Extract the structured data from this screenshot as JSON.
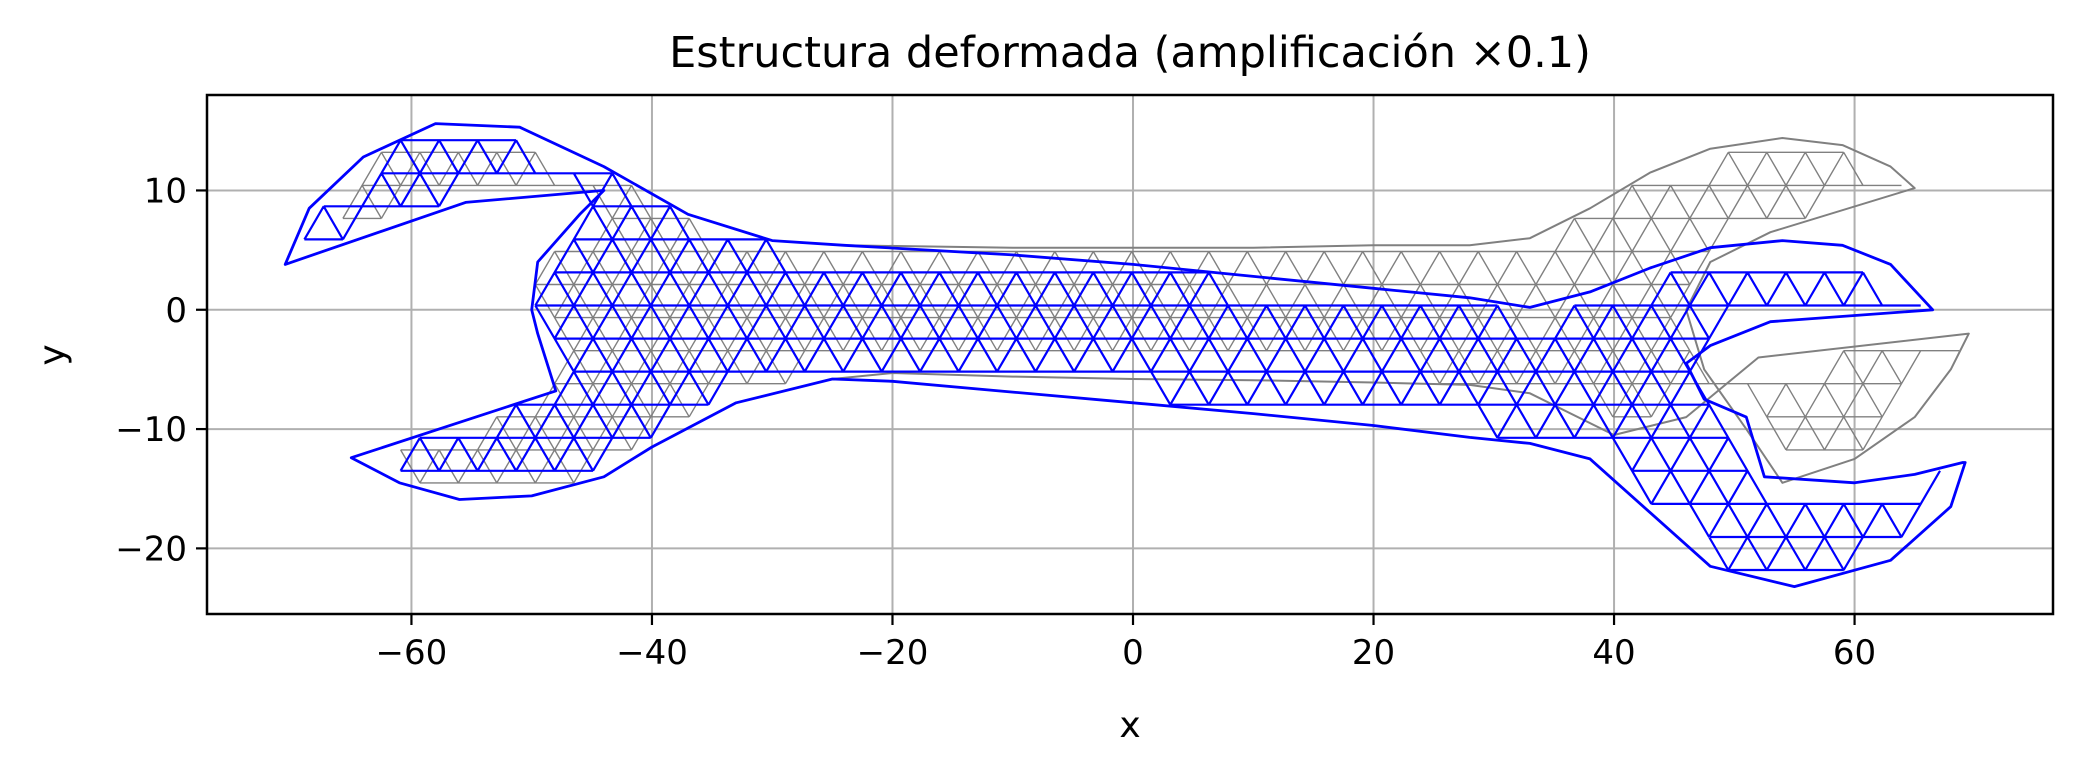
{
  "chart_data": {
    "type": "mesh",
    "title": "Estructura deformada (amplificación ×0.1)",
    "xlabel": "x",
    "ylabel": "y",
    "xlim": [
      -77,
      76.5
    ],
    "ylim": [
      -25.5,
      18
    ],
    "x_ticks": [
      -60,
      -40,
      -20,
      0,
      20,
      40,
      60
    ],
    "x_tick_labels": [
      "−60",
      "−40",
      "−20",
      "0",
      "20",
      "40",
      "60"
    ],
    "y_ticks": [
      -20,
      -10,
      0,
      10
    ],
    "y_tick_labels": [
      "−20",
      "−10",
      "0",
      "10"
    ],
    "grid": true,
    "series": [
      {
        "role": "undeformed",
        "color": "#808080",
        "outline": [
          [
            -70.5,
            3.8
          ],
          [
            -68.5,
            8.5
          ],
          [
            -64,
            12.8
          ],
          [
            -58,
            15.6
          ],
          [
            -51,
            15.3
          ],
          [
            -44,
            12.0
          ],
          [
            -37,
            8.0
          ],
          [
            -30,
            5.8
          ],
          [
            -24,
            5.4
          ],
          [
            -10,
            5.2
          ],
          [
            0,
            5.2
          ],
          [
            10,
            5.2
          ],
          [
            20,
            5.4
          ],
          [
            28,
            5.4
          ],
          [
            33,
            6.0
          ],
          [
            38,
            8.5
          ],
          [
            43,
            11.5
          ],
          [
            48,
            13.5
          ],
          [
            54,
            14.4
          ],
          [
            59,
            13.8
          ],
          [
            63,
            12.0
          ],
          [
            65,
            10.2
          ],
          [
            53,
            6.5
          ],
          [
            48,
            4.0
          ],
          [
            46,
            0
          ],
          [
            47.5,
            -5
          ],
          [
            51,
            -10
          ],
          [
            54,
            -14.5
          ],
          [
            60,
            -12.5
          ],
          [
            65,
            -9.0
          ],
          [
            68,
            -5.0
          ],
          [
            69.5,
            -2.0
          ],
          [
            52,
            -4.0
          ],
          [
            46,
            -9.0
          ],
          [
            40,
            -10.5
          ],
          [
            33,
            -7.0
          ],
          [
            28,
            -6.3
          ],
          [
            20,
            -6.1
          ],
          [
            10,
            -5.9
          ],
          [
            0,
            -5.8
          ],
          [
            -10,
            -5.6
          ],
          [
            -20,
            -5.3
          ],
          [
            -25,
            -5.8
          ],
          [
            -33,
            -7.8
          ],
          [
            -40,
            -11.5
          ],
          [
            -44,
            -14.0
          ],
          [
            -50,
            -15.6
          ],
          [
            -56,
            -15.9
          ],
          [
            -61,
            -14.5
          ],
          [
            -65,
            -12.4
          ],
          [
            -48,
            -6.8
          ],
          [
            -49.5,
            -2.0
          ],
          [
            -50,
            0
          ],
          [
            -49.5,
            4.0
          ],
          [
            -46,
            8.0
          ],
          [
            -44,
            10.0
          ],
          [
            -55.5,
            9.0
          ]
        ]
      },
      {
        "role": "deformed",
        "color": "#0000ff",
        "outline": [
          [
            -70.5,
            3.8
          ],
          [
            -68.5,
            8.5
          ],
          [
            -64,
            12.8
          ],
          [
            -58,
            15.6
          ],
          [
            -51,
            15.3
          ],
          [
            -44,
            12.0
          ],
          [
            -37,
            8.0
          ],
          [
            -30,
            5.8
          ],
          [
            -24,
            5.4
          ],
          [
            -10,
            4.6
          ],
          [
            0,
            3.8
          ],
          [
            10,
            2.8
          ],
          [
            20,
            1.8
          ],
          [
            28,
            1.0
          ],
          [
            33,
            0.2
          ],
          [
            38,
            1.5
          ],
          [
            43,
            3.5
          ],
          [
            48,
            5.2
          ],
          [
            54,
            5.8
          ],
          [
            59,
            5.4
          ],
          [
            63,
            3.8
          ],
          [
            66.5,
            0
          ],
          [
            53,
            -1.0
          ],
          [
            48,
            -3.0
          ],
          [
            46,
            -4.5
          ],
          [
            47.5,
            -7.5
          ],
          [
            51,
            -9.0
          ],
          [
            52.5,
            -14.0
          ],
          [
            60,
            -14.5
          ],
          [
            65,
            -13.8
          ],
          [
            69,
            -12.8
          ],
          [
            69.2,
            -12.8
          ],
          [
            68,
            -16.5
          ],
          [
            63,
            -21.0
          ],
          [
            55,
            -23.2
          ],
          [
            48,
            -21.5
          ],
          [
            43,
            -17.0
          ],
          [
            38,
            -12.5
          ],
          [
            33,
            -11.2
          ],
          [
            28,
            -10.7
          ],
          [
            20,
            -9.7
          ],
          [
            10,
            -8.7
          ],
          [
            0,
            -7.8
          ],
          [
            -10,
            -6.9
          ],
          [
            -20,
            -6.0
          ],
          [
            -25,
            -5.8
          ],
          [
            -33,
            -7.8
          ],
          [
            -40,
            -11.5
          ],
          [
            -44,
            -14.0
          ],
          [
            -50,
            -15.6
          ],
          [
            -56,
            -15.9
          ],
          [
            -61,
            -14.5
          ],
          [
            -65,
            -12.4
          ],
          [
            -48,
            -6.8
          ],
          [
            -49.5,
            -2.0
          ],
          [
            -50,
            0
          ],
          [
            -49.5,
            4.0
          ],
          [
            -46,
            8.0
          ],
          [
            -44,
            10.0
          ],
          [
            -55.5,
            9.0
          ]
        ]
      }
    ]
  }
}
